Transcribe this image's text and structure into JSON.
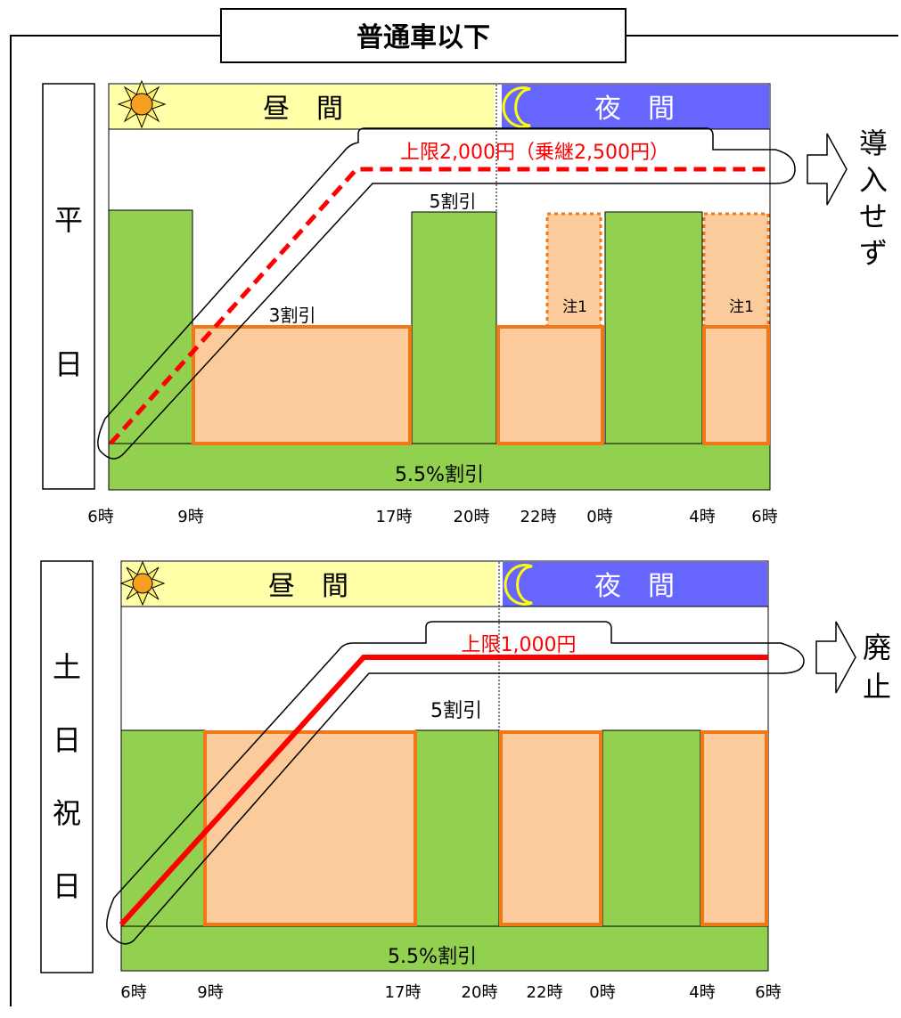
{
  "title": "普通車以下",
  "weekday": {
    "label_chars": [
      "平",
      "日"
    ],
    "day_label": "昼　間",
    "night_label": "夜　間",
    "cap_label": "上限2,000円（乗継2,500円）",
    "cap_result_chars": [
      "導",
      "入",
      "せ",
      "ず"
    ],
    "discount_5": "5割引",
    "discount_3": "3割引",
    "note_left": "注1",
    "note_right": "注1",
    "base_discount": "5.5%割引",
    "times": [
      "6時",
      "9時",
      "17時",
      "20時",
      "22時",
      "0時",
      "4時",
      "6時"
    ]
  },
  "holiday": {
    "label_chars": [
      "土",
      "日",
      "祝",
      "日"
    ],
    "day_label": "昼　間",
    "night_label": "夜　間",
    "cap_label": "上限1,000円",
    "cap_result_chars": [
      "廃",
      "止"
    ],
    "discount_5": "5割引",
    "base_discount": "5.5%割引",
    "times": [
      "6時",
      "9時",
      "17時",
      "20時",
      "22時",
      "0時",
      "4時",
      "6時"
    ]
  },
  "colors": {
    "green": "#92d050",
    "peach": "#fbcb9b",
    "orange": "#f07818",
    "day_band": "#ffffa8",
    "night_band": "#6666ff",
    "red": "#ff0000",
    "sun": "#f5a020"
  }
}
